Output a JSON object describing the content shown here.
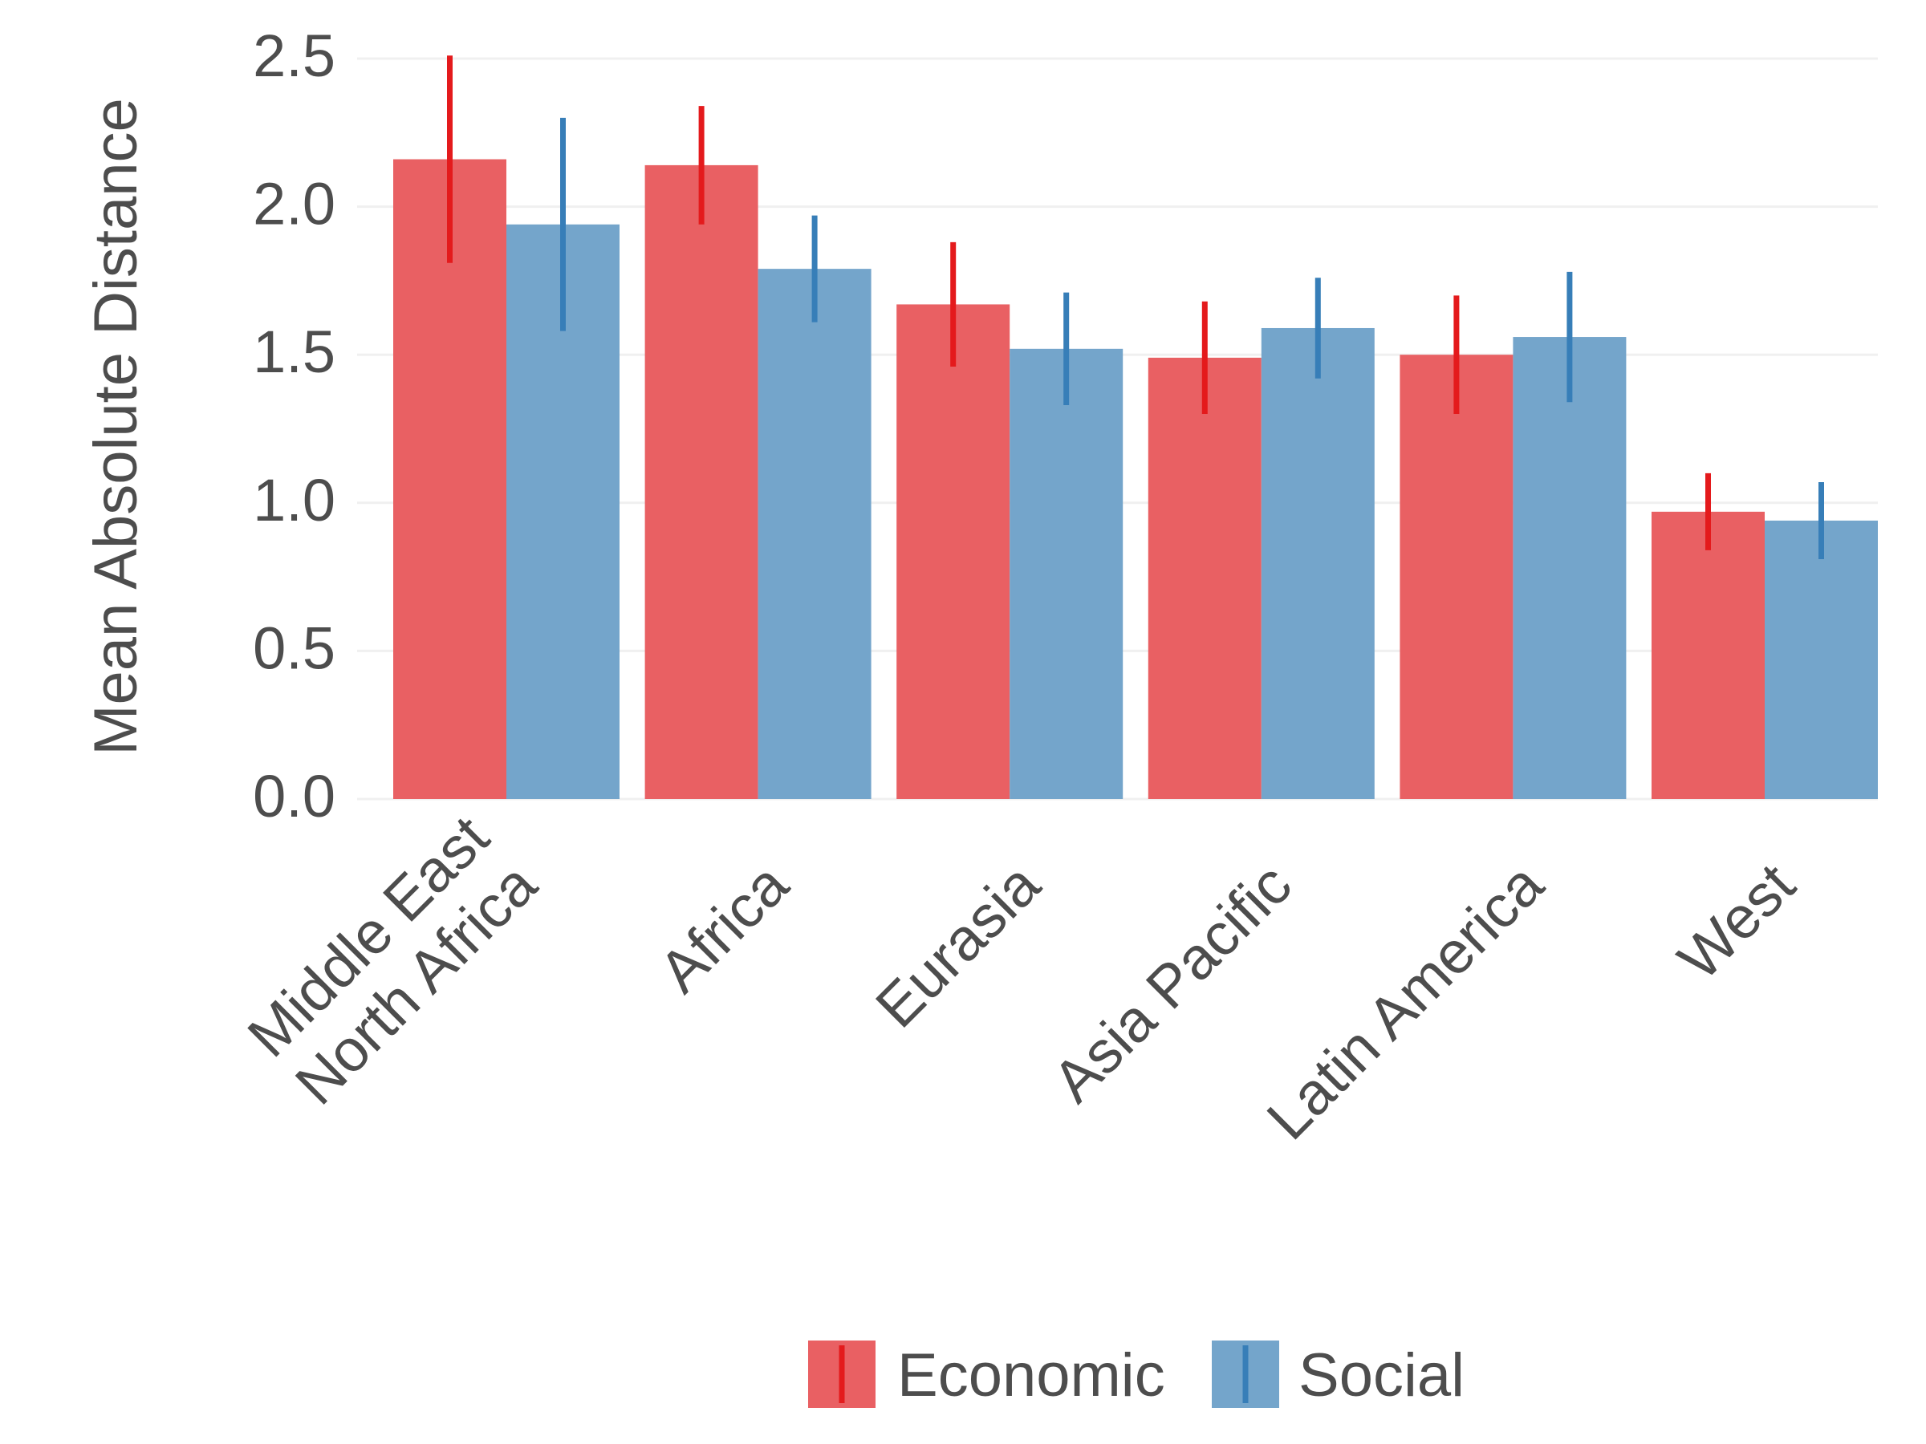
{
  "chart_data": {
    "type": "bar",
    "title": "",
    "xlabel": "",
    "ylabel": "Mean Absolute Distance",
    "ylim": [
      0,
      2.5
    ],
    "yticks": [
      "0.0",
      "0.5",
      "1.0",
      "1.5",
      "2.0",
      "2.5"
    ],
    "grid": true,
    "legend_position": "bottom",
    "categories": [
      [
        "Middle East",
        "North Africa"
      ],
      [
        "Africa"
      ],
      [
        "Eurasia"
      ],
      [
        "Asia Pacific"
      ],
      [
        "Latin America"
      ],
      [
        "West"
      ]
    ],
    "series": [
      {
        "name": "Economic",
        "color": "#e41a1c",
        "values": [
          2.16,
          2.14,
          1.67,
          1.49,
          1.5,
          0.97
        ],
        "error_low": [
          1.81,
          1.94,
          1.46,
          1.3,
          1.3,
          0.84
        ],
        "error_high": [
          2.51,
          2.34,
          1.88,
          1.68,
          1.7,
          1.1
        ]
      },
      {
        "name": "Social",
        "color": "#377eb8",
        "values": [
          1.94,
          1.79,
          1.52,
          1.59,
          1.56,
          0.94
        ],
        "error_low": [
          1.58,
          1.61,
          1.33,
          1.42,
          1.34,
          0.81
        ],
        "error_high": [
          2.3,
          1.97,
          1.71,
          1.76,
          1.78,
          1.07
        ]
      }
    ]
  }
}
